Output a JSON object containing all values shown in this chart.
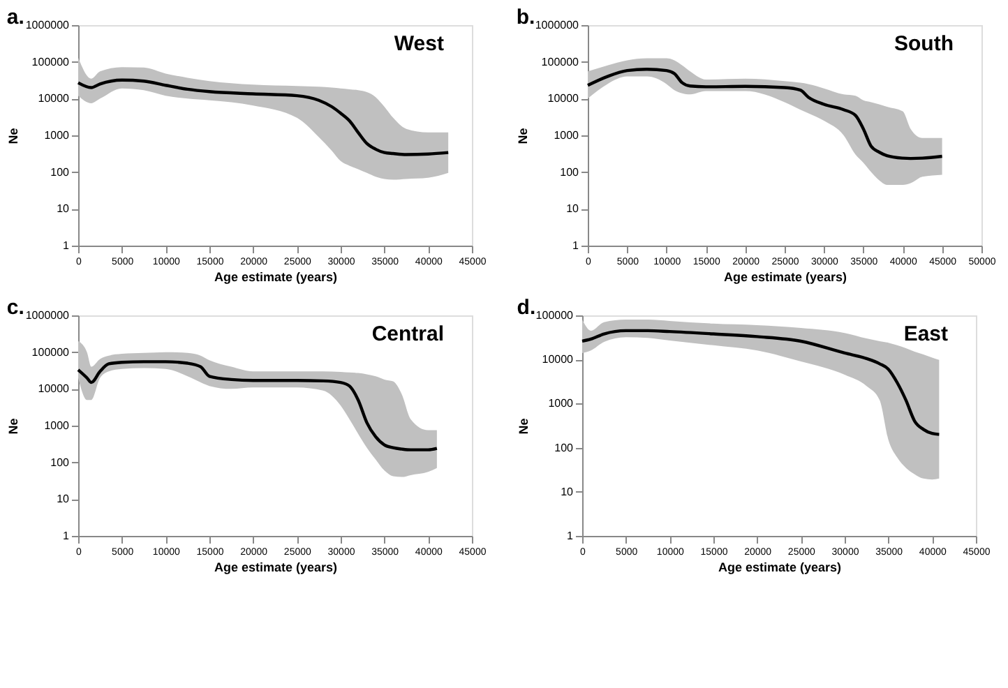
{
  "chart_data": [
    {
      "type": "line",
      "title": "West",
      "annotations": [
        "a."
      ],
      "xlabel": "Age estimate (years)",
      "ylabel": "Ne",
      "log": "y",
      "grid": false,
      "xlim": [
        0,
        45000
      ],
      "xticks": [
        0,
        5000,
        10000,
        15000,
        20000,
        25000,
        30000,
        35000,
        40000,
        45000
      ],
      "ylim": [
        1,
        1000000
      ],
      "yticks": [
        1,
        10,
        100,
        1000,
        10000,
        100000,
        1000000
      ],
      "x": [
        0,
        1500,
        2500,
        5000,
        7500,
        10000,
        12500,
        15000,
        20000,
        25000,
        27500,
        29000,
        30000,
        31000,
        32000,
        33000,
        34000,
        35000,
        36000,
        37500,
        40000,
        42300
      ],
      "series": [
        {
          "color": "#000000",
          "values": [
            27000,
            20000,
            25000,
            32000,
            30000,
            23000,
            18000,
            15500,
            13500,
            12000,
            9000,
            6000,
            4000,
            2500,
            1200,
            600,
            420,
            340,
            320,
            300,
            310,
            340
          ],
          "lower": [
            12000,
            7500,
            10000,
            19000,
            17000,
            12000,
            10000,
            9000,
            6500,
            3000,
            900,
            380,
            200,
            150,
            120,
            95,
            75,
            65,
            62,
            65,
            70,
            95
          ],
          "upper": [
            130000,
            35000,
            55000,
            72000,
            70000,
            48000,
            37000,
            30000,
            24000,
            22000,
            21000,
            20000,
            19000,
            18000,
            17000,
            15000,
            11000,
            6000,
            3000,
            1500,
            1200,
            1200
          ]
        }
      ]
    },
    {
      "type": "line",
      "title": "South",
      "annotations": [
        "b."
      ],
      "xlabel": "Age estimate (years)",
      "ylabel": "Ne",
      "log": "y",
      "grid": false,
      "xlim": [
        0,
        50000
      ],
      "xticks": [
        0,
        5000,
        10000,
        15000,
        20000,
        25000,
        30000,
        35000,
        40000,
        45000,
        50000
      ],
      "ylim": [
        1,
        1000000
      ],
      "yticks": [
        1,
        10,
        100,
        1000,
        10000,
        100000,
        1000000
      ],
      "x": [
        0,
        2500,
        5000,
        7500,
        10000,
        11000,
        12000,
        13000,
        15000,
        20000,
        25000,
        27000,
        28000,
        30000,
        32500,
        34000,
        35000,
        36000,
        37000,
        38000,
        40000,
        41000,
        42500,
        45000
      ],
      "series": [
        {
          "color": "#000000",
          "values": [
            23000,
            40000,
            58000,
            63000,
            58000,
            48000,
            27000,
            22000,
            21000,
            21500,
            20000,
            17000,
            11000,
            7000,
            5000,
            3500,
            1500,
            500,
            350,
            280,
            240,
            235,
            240,
            270
          ],
          "lower": [
            10000,
            25000,
            40000,
            40000,
            25000,
            17000,
            14000,
            13000,
            16000,
            16000,
            8000,
            5000,
            4000,
            2500,
            1000,
            300,
            180,
            100,
            60,
            45,
            45,
            50,
            75,
            85
          ],
          "upper": [
            55000,
            80000,
            110000,
            125000,
            125000,
            110000,
            80000,
            55000,
            33000,
            35000,
            30000,
            27000,
            25000,
            19000,
            13000,
            12000,
            9000,
            8000,
            7000,
            6000,
            4500,
            1500,
            850,
            850
          ]
        }
      ]
    },
    {
      "type": "line",
      "title": "Central",
      "annotations": [
        "c."
      ],
      "xlabel": "Age estimate (years)",
      "ylabel": "Ne",
      "log": "y",
      "grid": false,
      "xlim": [
        0,
        45000
      ],
      "xticks": [
        0,
        5000,
        10000,
        15000,
        20000,
        25000,
        30000,
        35000,
        40000,
        45000
      ],
      "ylim": [
        1,
        1000000
      ],
      "yticks": [
        1,
        10,
        100,
        1000,
        10000,
        100000,
        1000000
      ],
      "x": [
        0,
        1000,
        1500,
        2500,
        3500,
        5000,
        7500,
        10000,
        12500,
        14000,
        15000,
        17500,
        20000,
        25000,
        28000,
        30000,
        31000,
        32000,
        33000,
        34000,
        35000,
        36000,
        37000,
        38000,
        40000,
        41000
      ],
      "series": [
        {
          "color": "#000000",
          "values": [
            33000,
            20000,
            15000,
            30000,
            48000,
            53000,
            55000,
            55000,
            50000,
            40000,
            22000,
            18000,
            17000,
            17000,
            16500,
            15000,
            12000,
            5000,
            1200,
            500,
            300,
            250,
            230,
            220,
            220,
            240
          ],
          "lower": [
            20000,
            5000,
            5000,
            20000,
            30000,
            35000,
            37000,
            35000,
            22000,
            15000,
            12000,
            10000,
            11000,
            11000,
            9000,
            3500,
            1500,
            600,
            250,
            120,
            60,
            42,
            40,
            45,
            55,
            70
          ],
          "upper": [
            200000,
            100000,
            40000,
            65000,
            80000,
            90000,
            95000,
            100000,
            95000,
            80000,
            60000,
            40000,
            30000,
            30000,
            30000,
            29000,
            28000,
            27000,
            25000,
            22000,
            18000,
            16000,
            7000,
            1500,
            750,
            750
          ]
        }
      ]
    },
    {
      "type": "line",
      "title": "East",
      "annotations": [
        "d."
      ],
      "xlabel": "Age estimate (years)",
      "ylabel": "Ne",
      "log": "y",
      "grid": false,
      "xlim": [
        0,
        45000
      ],
      "xticks": [
        0,
        5000,
        10000,
        15000,
        20000,
        25000,
        30000,
        35000,
        40000,
        45000
      ],
      "ylim": [
        1,
        100000
      ],
      "yticks": [
        1,
        10,
        100,
        1000,
        10000,
        100000
      ],
      "x": [
        0,
        1000,
        2500,
        5000,
        7500,
        10000,
        15000,
        20000,
        25000,
        30000,
        32500,
        34000,
        35000,
        36000,
        37000,
        38000,
        39000,
        40000,
        40800
      ],
      "series": [
        {
          "color": "#000000",
          "values": [
            26000,
            29000,
            38000,
            45000,
            45000,
            43000,
            38000,
            33000,
            26000,
            14000,
            10500,
            8000,
            6000,
            3000,
            1200,
            400,
            260,
            210,
            200
          ],
          "lower": [
            14000,
            16000,
            25000,
            32000,
            31000,
            27000,
            21000,
            16000,
            9000,
            4500,
            2500,
            1200,
            150,
            60,
            35,
            25,
            20,
            19,
            20
          ],
          "upper": [
            80000,
            45000,
            70000,
            80000,
            80000,
            75000,
            65000,
            60000,
            52000,
            40000,
            30000,
            26000,
            24000,
            21000,
            18000,
            15000,
            13000,
            11000,
            9800
          ]
        }
      ]
    }
  ]
}
